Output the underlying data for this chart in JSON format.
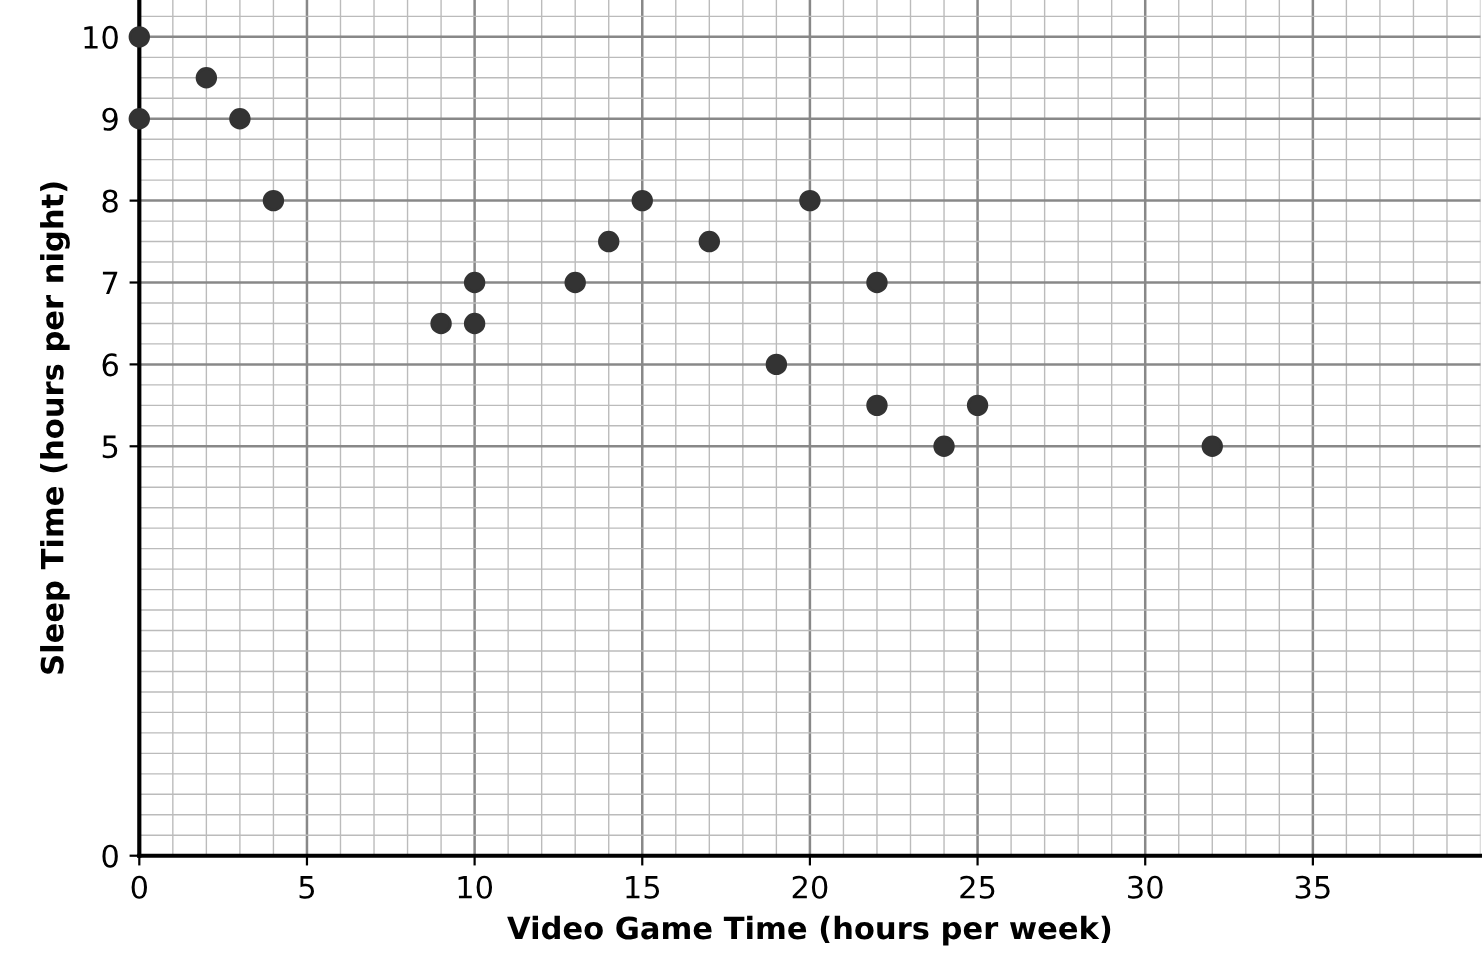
{
  "chart_data": {
    "type": "scatter",
    "xlabel": "Video Game Time (hours per week)",
    "ylabel": "Sleep Time (hours per night)",
    "series": [
      {
        "color": "#333333",
        "x": [
          0,
          0,
          2,
          3,
          4,
          9,
          10,
          10,
          13,
          14,
          15,
          17,
          19,
          20,
          22,
          22,
          24,
          25,
          32
        ],
        "values": [
          10,
          9,
          9.5,
          9,
          8,
          6.5,
          7,
          6.5,
          7,
          7.5,
          8,
          7.5,
          6,
          8,
          7,
          5.5,
          5,
          5.5,
          5
        ]
      }
    ],
    "xlim": [
      0,
      40
    ],
    "xticks": [
      0,
      5,
      10,
      15,
      20,
      25,
      30,
      35
    ],
    "ylim": [
      0,
      10.45
    ],
    "yticks": [
      0,
      5,
      6,
      7,
      8,
      9,
      10
    ],
    "grid": true,
    "marker": "circle",
    "legend": false
  }
}
